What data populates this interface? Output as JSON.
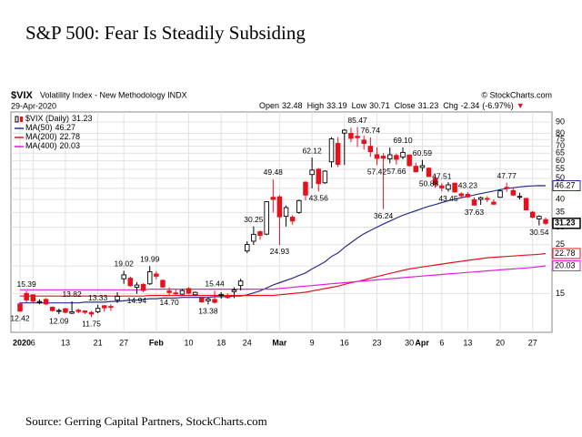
{
  "title": "S&P 500: Fear Is Steadily Subsiding",
  "source": "Source: Gerring Capital Partners, StockCharts.com",
  "chart_data": {
    "type": "candlestick",
    "symbol": "$VIX",
    "description": "Volatility Index - New Methodology INDX",
    "credit": "© StockCharts.com",
    "date": "29-Apr-2020",
    "quote_labels": {
      "open": "Open",
      "high": "High",
      "low": "Low",
      "close": "Close",
      "change": "Chg"
    },
    "change": -2.34,
    "change_pct": {
      "value": -6.97,
      "label": "(-6.97%)"
    },
    "price_label": "$VIX (Daily)",
    "categories": [
      "2020",
      null,
      "6",
      null,
      null,
      null,
      null,
      "13",
      null,
      null,
      null,
      null,
      "21",
      null,
      null,
      null,
      "27",
      null,
      null,
      null,
      null,
      "Feb",
      null,
      null,
      null,
      null,
      "10",
      null,
      null,
      null,
      null,
      "18",
      null,
      null,
      null,
      "24",
      null,
      null,
      null,
      null,
      "Mar",
      null,
      null,
      null,
      null,
      "9",
      null,
      null,
      null,
      null,
      "16",
      null,
      null,
      null,
      null,
      "23",
      null,
      null,
      null,
      null,
      "30",
      null,
      "Apr",
      null,
      null,
      "6",
      null,
      null,
      null,
      "13",
      null,
      null,
      null,
      null,
      "20",
      null,
      null,
      null,
      null,
      "27",
      null,
      null
    ],
    "open": [
      13.46,
      15.01,
      14.8,
      13.72,
      14.1,
      13.0,
      12.5,
      12.8,
      12.2,
      12.6,
      12.5,
      12.3,
      12.4,
      13.2,
      13.1,
      14.0,
      17.5,
      17.6,
      16.0,
      16.5,
      16.6,
      18.4,
      17.2,
      15.4,
      15.1,
      14.9,
      15.8,
      14.8,
      14.3,
      13.9,
      14.1,
      14.7,
      14.6,
      15.3,
      16.3,
      23.4,
      25.9,
      28.6,
      27.9,
      41.0,
      41.2,
      33.6,
      33.3,
      35.0,
      48.0,
      52.0,
      55.0,
      47.7,
      59.4,
      72.0,
      80.2,
      80.0,
      77.6,
      74.5,
      69.9,
      64.0,
      63.0,
      61.2,
      63.5,
      62.5,
      63.8,
      56.7,
      56.0,
      55.6,
      50.0,
      46.2,
      44.6,
      47.5,
      42.5,
      42.3,
      40.0,
      40.1,
      40.5,
      39.0,
      41.0,
      45.5,
      44.0,
      41.3,
      40.5,
      35.1,
      32.7,
      32.48
    ],
    "high": [
      13.72,
      15.39,
      14.87,
      14.11,
      14.3,
      13.1,
      12.82,
      12.9,
      13.82,
      12.8,
      12.6,
      12.5,
      13.33,
      13.3,
      13.4,
      15.2,
      19.02,
      17.9,
      16.9,
      16.7,
      19.99,
      18.9,
      17.4,
      16.0,
      15.6,
      15.7,
      16.0,
      15.3,
      14.5,
      14.4,
      15.44,
      15.2,
      15.0,
      16.0,
      17.5,
      25.9,
      30.25,
      29.0,
      39.2,
      49.48,
      41.9,
      37.6,
      34.0,
      40.0,
      48.5,
      62.12,
      55.6,
      54.4,
      76.8,
      76.8,
      83.6,
      84.8,
      85.47,
      78.3,
      76.74,
      69.0,
      65.0,
      69.0,
      64.7,
      69.1,
      64.2,
      58.8,
      60.59,
      56.0,
      51.8,
      47.51,
      48.0,
      47.8,
      43.2,
      43.23,
      41.0,
      41.3,
      41.5,
      40.2,
      44.5,
      47.77,
      45.5,
      43.0,
      40.8,
      35.6,
      34.0,
      33.19
    ],
    "low": [
      12.42,
      13.64,
      13.54,
      13.41,
      13.3,
      12.4,
      12.09,
      12.2,
      12.1,
      12.2,
      12.1,
      11.75,
      12.2,
      12.4,
      12.5,
      13.6,
      16.6,
      16.1,
      14.94,
      15.2,
      16.4,
      17.4,
      15.9,
      14.7,
      14.8,
      14.8,
      14.9,
      14.6,
      13.6,
      13.38,
      13.5,
      14.2,
      14.2,
      14.3,
      15.5,
      22.9,
      24.9,
      26.3,
      27.6,
      35.0,
      24.93,
      30.2,
      30.8,
      34.5,
      39.8,
      45.0,
      43.56,
      47.2,
      56.0,
      56.2,
      57.5,
      73.0,
      69.4,
      67.5,
      62.6,
      57.42,
      36.24,
      58.5,
      57.66,
      61.0,
      56.5,
      53.2,
      53.8,
      50.88,
      45.2,
      43.6,
      43.45,
      43.0,
      40.5,
      40.8,
      37.63,
      37.9,
      39.0,
      37.8,
      40.7,
      43.4,
      41.6,
      40.1,
      35.8,
      32.9,
      30.54,
      30.71
    ],
    "close": [
      12.47,
      14.02,
      13.85,
      13.79,
      13.45,
      12.54,
      12.56,
      12.32,
      12.39,
      12.42,
      12.32,
      12.1,
      12.85,
      12.91,
      12.98,
      14.56,
      18.23,
      16.28,
      16.39,
      15.49,
      18.84,
      17.97,
      16.05,
      15.15,
      14.96,
      15.47,
      15.04,
      15.18,
      13.74,
      14.15,
      13.68,
      14.83,
      14.38,
      15.56,
      17.08,
      25.03,
      27.85,
      27.56,
      39.16,
      40.11,
      33.42,
      36.82,
      31.99,
      39.62,
      41.94,
      54.46,
      47.3,
      53.9,
      75.47,
      57.83,
      82.69,
      75.91,
      76.45,
      72.0,
      66.04,
      61.59,
      61.67,
      63.95,
      61.0,
      65.54,
      57.08,
      53.54,
      57.06,
      50.91,
      46.8,
      45.24,
      46.7,
      43.35,
      41.67,
      41.17,
      37.76,
      40.84,
      40.11,
      38.15,
      43.83,
      45.41,
      41.98,
      41.38,
      35.93,
      33.29,
      33.57,
      31.23
    ],
    "up_color": "#000000",
    "down_color": "#e8101c",
    "series": [
      {
        "name": "MA(50)",
        "color": "#2a2e8c",
        "values": [
          13.6,
          13.6,
          13.6,
          13.6,
          13.6,
          13.6,
          13.6,
          13.6,
          13.6,
          13.6,
          13.7,
          13.7,
          13.7,
          13.7,
          13.8,
          13.8,
          13.9,
          14.0,
          14.0,
          14.1,
          14.2,
          14.2,
          14.3,
          14.3,
          14.3,
          14.4,
          14.4,
          14.4,
          14.4,
          14.4,
          14.5,
          14.5,
          14.5,
          14.6,
          14.6,
          14.8,
          15.1,
          15.4,
          15.9,
          16.4,
          16.8,
          17.2,
          17.6,
          18.1,
          18.6,
          19.4,
          20.1,
          20.9,
          22.1,
          22.9,
          24.3,
          25.5,
          26.8,
          28.0,
          29.0,
          30.0,
          31.0,
          32.0,
          33.0,
          34.0,
          34.8,
          35.6,
          36.5,
          37.3,
          38.0,
          38.8,
          39.5,
          40.2,
          40.8,
          41.4,
          42.0,
          42.6,
          43.2,
          43.8,
          44.4,
          44.9,
          45.3,
          45.7,
          46.0,
          46.2,
          46.3,
          46.27
        ]
      },
      {
        "name": "MA(200)",
        "color": "#e8101c",
        "values": [
          14.6,
          14.6,
          14.6,
          14.6,
          14.6,
          14.6,
          14.6,
          14.6,
          14.6,
          14.6,
          14.6,
          14.6,
          14.6,
          14.6,
          14.6,
          14.6,
          14.6,
          14.6,
          14.6,
          14.6,
          14.7,
          14.7,
          14.7,
          14.7,
          14.7,
          14.7,
          14.7,
          14.7,
          14.7,
          14.7,
          14.7,
          14.7,
          14.7,
          14.7,
          14.7,
          14.7,
          14.7,
          14.7,
          14.7,
          14.7,
          14.8,
          14.9,
          15.0,
          15.1,
          15.2,
          15.4,
          15.6,
          15.8,
          16.0,
          16.2,
          16.5,
          16.8,
          17.0,
          17.3,
          17.6,
          17.9,
          18.2,
          18.5,
          18.8,
          19.1,
          19.4,
          19.6,
          19.8,
          20.0,
          20.2,
          20.4,
          20.6,
          20.8,
          21.0,
          21.2,
          21.4,
          21.6,
          21.8,
          21.9,
          22.0,
          22.1,
          22.2,
          22.3,
          22.4,
          22.5,
          22.6,
          22.78
        ]
      },
      {
        "name": "MA(400)",
        "color": "#e020e0",
        "values": [
          15.6,
          15.6,
          15.6,
          15.6,
          15.6,
          15.6,
          15.6,
          15.6,
          15.6,
          15.6,
          15.6,
          15.6,
          15.6,
          15.6,
          15.6,
          15.6,
          15.6,
          15.6,
          15.6,
          15.6,
          15.7,
          15.7,
          15.7,
          15.7,
          15.7,
          15.7,
          15.7,
          15.7,
          15.7,
          15.7,
          15.7,
          15.7,
          15.7,
          15.7,
          15.7,
          15.7,
          15.7,
          15.7,
          15.7,
          15.7,
          15.8,
          15.9,
          16.0,
          16.1,
          16.2,
          16.3,
          16.4,
          16.5,
          16.6,
          16.7,
          16.8,
          16.9,
          17.0,
          17.1,
          17.2,
          17.3,
          17.4,
          17.5,
          17.6,
          17.7,
          17.8,
          17.9,
          18.0,
          18.1,
          18.2,
          18.3,
          18.4,
          18.5,
          18.6,
          18.7,
          18.8,
          18.9,
          19.0,
          19.1,
          19.2,
          19.3,
          19.4,
          19.5,
          19.6,
          19.7,
          19.85,
          20.03
        ]
      }
    ],
    "annotations": [
      {
        "index": 1,
        "value": 15.39
      },
      {
        "index": 8,
        "value": 13.82
      },
      {
        "index": 12,
        "value": 13.33
      },
      {
        "index": 16,
        "value": 19.02
      },
      {
        "index": 20,
        "value": 19.99
      },
      {
        "index": 30,
        "value": 15.44
      },
      {
        "index": 36,
        "value": 30.25
      },
      {
        "index": 39,
        "value": 49.48
      },
      {
        "index": 45,
        "value": 62.12
      },
      {
        "index": 52,
        "value": 85.47
      },
      {
        "index": 54,
        "value": 76.74
      },
      {
        "index": 59,
        "value": 69.1,
        "label": "69.10"
      },
      {
        "index": 62,
        "value": 60.59
      },
      {
        "index": 65,
        "value": 47.51
      },
      {
        "index": 69,
        "value": 43.23
      },
      {
        "index": 75,
        "value": 47.77
      },
      {
        "index": 0,
        "value": 12.42
      },
      {
        "index": 6,
        "value": 12.09
      },
      {
        "index": 11,
        "value": 11.75
      },
      {
        "index": 18,
        "value": 14.94
      },
      {
        "index": 23,
        "value": 14.7,
        "label": "14.70"
      },
      {
        "index": 29,
        "value": 13.38
      },
      {
        "index": 40,
        "value": 24.93
      },
      {
        "index": 46,
        "value": 43.56
      },
      {
        "index": 55,
        "value": 57.42
      },
      {
        "index": 56,
        "value": 36.24
      },
      {
        "index": 58,
        "value": 57.66
      },
      {
        "index": 63,
        "value": 50.88
      },
      {
        "index": 66,
        "value": 43.45
      },
      {
        "index": 70,
        "value": 37.63
      },
      {
        "index": 80,
        "value": 30.54
      }
    ],
    "ylim": [
      10,
      100
    ],
    "log_scale": true,
    "yticks": [
      15,
      20,
      25,
      30,
      35,
      40,
      45,
      50,
      55,
      60,
      65,
      70,
      75,
      80,
      90
    ],
    "grid": true
  }
}
